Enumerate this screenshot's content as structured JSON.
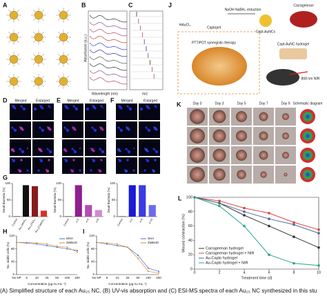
{
  "panels": [
    "A",
    "B",
    "C",
    "D",
    "E",
    "F",
    "G",
    "H",
    "I",
    "J",
    "K",
    "L"
  ],
  "caption": "(A) Simplified structure of each Au₂₅ NC. (B) UV-vis absorption and (C) ESI-MS spectra of each Au₂₅ NC synthesized in this stu",
  "panel_b": {
    "x_label": "Wavelength (nm)",
    "y_label": "Absorbance (a.u.)"
  },
  "panel_c": {
    "x_label": "m/z"
  },
  "microscopy_headers": [
    "Merged",
    "Enlarged"
  ],
  "scheme_j": {
    "labels": [
      "HAuCl₄",
      "Captopril",
      "NaOH NaBH₄ reduction",
      "Carrageenan",
      "Capt-AuNCs",
      "Capt-AuNC hydrogel",
      "PTT/PDT synergistic therapy",
      "808 nm NIR"
    ]
  },
  "panel_k": {
    "columns": [
      "Day 0",
      "Day 3",
      "Day 5",
      "Day 7",
      "Day 9",
      "Schematic diagram"
    ]
  },
  "chart_data": [
    {
      "type": "bar",
      "y_label": "Dead Bacteria (%)",
      "categories": [
        "Control",
        "Au₂₅MHA₁₈",
        "Au₂₅(SG)₁₈",
        "Au₂₅(Capto)₁₈"
      ],
      "values": [
        2,
        95,
        92,
        18
      ],
      "colors": [
        "#888888",
        "#111111",
        "#8b1a1a",
        "#d9302c"
      ],
      "ylim": [
        0,
        100
      ],
      "yticks": [
        0,
        50,
        100
      ]
    },
    {
      "type": "bar",
      "y_label": "Dead Bacteria (%)",
      "categories": [
        "Control",
        "x=2",
        "x=4",
        "x=8"
      ],
      "values": [
        2,
        95,
        35,
        20
      ],
      "colors": [
        "#888888",
        "#8e1f8e",
        "#b34db3",
        "#d08ad0"
      ],
      "ylim": [
        0,
        100
      ],
      "yticks": [
        0,
        50,
        100
      ]
    },
    {
      "type": "bar",
      "y_label": "Dead Bacteria (%)",
      "categories": [
        "Control",
        "x=2",
        "x=5",
        "x=10"
      ],
      "values": [
        2,
        95,
        95,
        35
      ],
      "colors": [
        "#888888",
        "#1a1ad9",
        "#3a3ae6",
        "#6b6bef"
      ],
      "ylim": [
        0,
        100
      ],
      "yticks": [
        0,
        50,
        100
      ]
    },
    {
      "type": "line",
      "y_label": "No. viable cells (%)",
      "x_label": "Concentration (μg Au mL⁻¹)",
      "categories": [
        "No NP",
        "5",
        "10",
        "25",
        "50",
        "100",
        "200"
      ],
      "series": [
        {
          "name": "MHA",
          "color": "#3b6fd1",
          "values": [
            100,
            98,
            95,
            90,
            85,
            80,
            75
          ]
        },
        {
          "name": "ZwBuSt",
          "color": "#e08a2c",
          "values": [
            100,
            100,
            98,
            95,
            88,
            85,
            70
          ]
        }
      ],
      "ylim": [
        0,
        120
      ],
      "yticks": [
        0,
        40,
        80,
        120
      ]
    },
    {
      "type": "line",
      "y_label": "No. viable cells (%)",
      "x_label": "Concentration (μg Au mL⁻¹)",
      "categories": [
        "No NP",
        "5",
        "10",
        "25",
        "50",
        "100",
        "200"
      ],
      "series": [
        {
          "name": "SHA",
          "color": "#3b6fd1",
          "values": [
            100,
            95,
            90,
            85,
            60,
            20,
            10
          ]
        },
        {
          "name": "ZwBuSt",
          "color": "#e08a2c",
          "values": [
            100,
            98,
            95,
            85,
            50,
            10,
            5
          ]
        }
      ],
      "ylim": [
        0,
        120
      ],
      "yticks": [
        0,
        40,
        80,
        120
      ]
    },
    {
      "type": "line",
      "y_label": "Wound contraction (%)",
      "x_label": "Treatment time (d)",
      "x": [
        0,
        2,
        4,
        6,
        8,
        10
      ],
      "series": [
        {
          "name": "Carrageenan hydrogel",
          "color": "#333333",
          "values": [
            100,
            92,
            75,
            60,
            45,
            30
          ]
        },
        {
          "name": "Carrageenan hydrogel + NIR",
          "color": "#d9443a",
          "values": [
            100,
            95,
            85,
            78,
            65,
            55
          ]
        },
        {
          "name": "Au-Capto hydrogel",
          "color": "#4a6a9a",
          "values": [
            100,
            92,
            80,
            70,
            62,
            50
          ]
        },
        {
          "name": "Au-Capto hydrogel + NIR",
          "color": "#2aa58a",
          "values": [
            100,
            88,
            60,
            20,
            8,
            5
          ]
        }
      ],
      "xlim": [
        0,
        10
      ],
      "xticks": [
        0,
        2,
        4,
        6,
        8,
        10
      ],
      "ylim": [
        0,
        100
      ],
      "yticks": [
        0,
        20,
        40,
        60,
        80,
        100
      ]
    }
  ]
}
